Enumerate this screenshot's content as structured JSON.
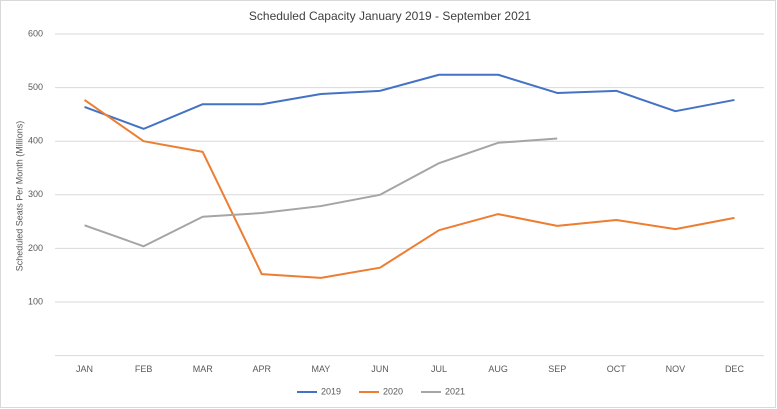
{
  "chart_data": {
    "type": "line",
    "title": "Scheduled Capacity January 2019   - September 2021",
    "y_label": "Scheduled Seats Per Month (Millions)",
    "categories": [
      "JAN",
      "FEB",
      "MAR",
      "APR",
      "MAY",
      "JUN",
      "JUL",
      "AUG",
      "SEP",
      "OCT",
      "NOV",
      "DEC"
    ],
    "series": [
      {
        "name": "2019",
        "color": "#4472c4",
        "values": [
          464,
          423,
          469,
          469,
          488,
          494,
          524,
          524,
          490,
          494,
          456,
          477
        ]
      },
      {
        "name": "2020",
        "color": "#ed7d31",
        "values": [
          477,
          400,
          380,
          152,
          145,
          164,
          234,
          264,
          242,
          253,
          236,
          257
        ]
      },
      {
        "name": "2021",
        "color": "#a5a5a5",
        "values": [
          243,
          204,
          259,
          266,
          279,
          300,
          359,
          397,
          405,
          null,
          null,
          null
        ]
      }
    ],
    "ylim": [
      0,
      600
    ],
    "yticks": [
      100,
      200,
      300,
      400,
      500,
      600
    ],
    "grid": true,
    "legend": "bottom"
  }
}
